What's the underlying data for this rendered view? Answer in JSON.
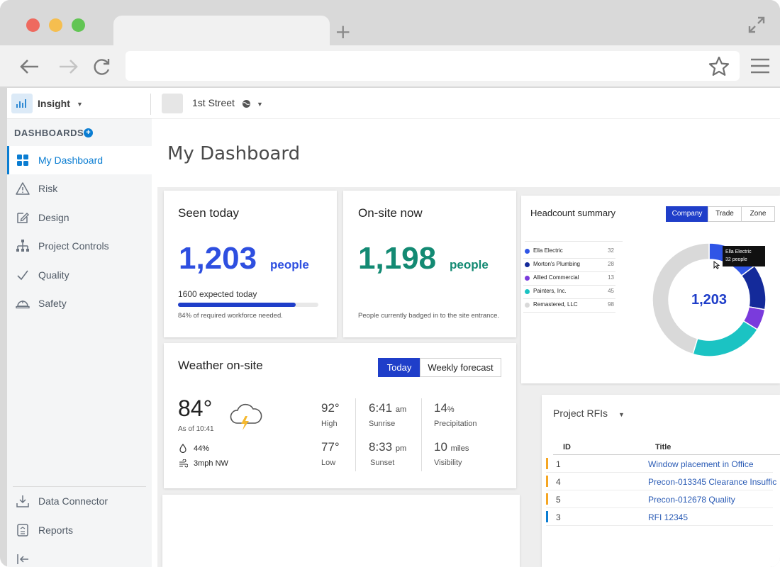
{
  "sidebar": {
    "app_name": "Insight",
    "section_title": "DASHBOARDS",
    "items": [
      {
        "label": "My Dashboard"
      },
      {
        "label": "Risk"
      },
      {
        "label": "Design"
      },
      {
        "label": "Project Controls"
      },
      {
        "label": "Quality"
      },
      {
        "label": "Safety"
      }
    ],
    "bottom_items": [
      {
        "label": "Data Connector"
      },
      {
        "label": "Reports"
      }
    ]
  },
  "header": {
    "project_name": "1st Street"
  },
  "page": {
    "title": "My Dashboard"
  },
  "seen_today": {
    "title": "Seen today",
    "count": "1,203",
    "unit": "people",
    "expected": "1600 expected today",
    "progress": 0.84,
    "progress_note": "84% of required workforce needed."
  },
  "onsite_now": {
    "title": "On-site now",
    "count": "1,198",
    "unit": "people",
    "note": "People currently badged in to the site entrance."
  },
  "headcount": {
    "title": "Headcount summary",
    "tabs": [
      "Company",
      "Trade",
      "Zone"
    ],
    "total": "1,203",
    "tooltip_name": "Ella Electric",
    "tooltip_value": "32 people"
  },
  "chart_data": {
    "type": "pie",
    "categories": [
      "Ella Electric",
      "Morton's Plumbing",
      "Allied Commercial",
      "Painters, Inc.",
      "Remastered, LLC"
    ],
    "values": [
      32,
      28,
      13,
      45,
      98
    ],
    "colors": [
      "#2f55e6",
      "#142a9a",
      "#7a3bdc",
      "#1bc3c3",
      "#d9d9d9"
    ]
  },
  "weather": {
    "title": "Weather on-site",
    "tabs": [
      "Today",
      "Weekly forecast"
    ],
    "temp": "84°",
    "as_of": "As of 10:41",
    "humidity": "44%",
    "wind": "3mph NW",
    "high": "92°",
    "high_label": "High",
    "low": "77°",
    "low_label": "Low",
    "sunrise": "6:41",
    "sunrise_unit": "am",
    "sunrise_label": "Sunrise",
    "sunset": "8:33",
    "sunset_unit": "pm",
    "sunset_label": "Sunset",
    "precip": "14",
    "precip_unit": "%",
    "precip_label": "Precipitation",
    "visibility": "10",
    "visibility_unit": "miles",
    "visibility_label": "Visibility"
  },
  "rfis": {
    "title": "Project RFIs",
    "columns": [
      "ID",
      "Title"
    ],
    "rows": [
      {
        "id": "1",
        "title": "Window placement in Office",
        "color": "#f5a623"
      },
      {
        "id": "4",
        "title": "Precon-013345 Clearance Insuffic",
        "color": "#f5a623"
      },
      {
        "id": "5",
        "title": "Precon-012678 Quality",
        "color": "#f5a623"
      },
      {
        "id": "3",
        "title": "RFI 12345",
        "color": "#0a7dd2"
      }
    ]
  }
}
